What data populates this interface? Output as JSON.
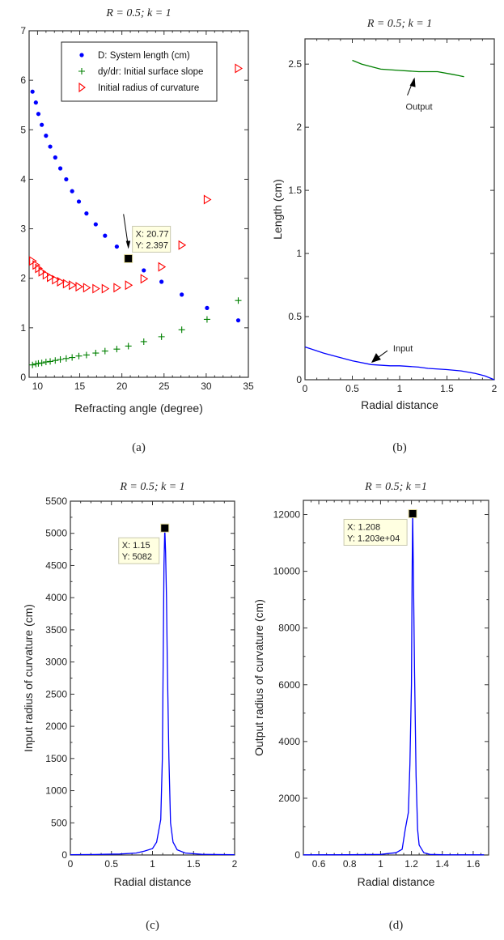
{
  "chart_data": [
    {
      "id": "a",
      "type": "scatter",
      "caption": "(a)",
      "title": "R = 0.5; k = 1",
      "xlabel": "Refracting angle (degree)",
      "ylabel": "",
      "xlim": [
        9,
        35
      ],
      "ylim": [
        0,
        7
      ],
      "xticks": [
        10,
        15,
        20,
        25,
        30,
        35
      ],
      "yticks": [
        0,
        1,
        2,
        3,
        4,
        5,
        6,
        7
      ],
      "legend_position": "top-center",
      "series": [
        {
          "name": "D: System length (cm)",
          "marker": "dot",
          "color": "#0000ff",
          "x": [
            9.4,
            9.8,
            10.1,
            10.5,
            11.0,
            11.5,
            12.1,
            12.7,
            13.4,
            14.1,
            14.9,
            15.8,
            16.9,
            18.0,
            19.4,
            20.77,
            22.6,
            24.7,
            27.1,
            30.1,
            33.8
          ],
          "y": [
            5.77,
            5.55,
            5.32,
            5.1,
            4.88,
            4.66,
            4.44,
            4.22,
            4.0,
            3.76,
            3.55,
            3.31,
            3.09,
            2.86,
            2.64,
            2.397,
            2.16,
            1.93,
            1.67,
            1.4,
            1.15
          ]
        },
        {
          "name": "dy/dr: Initial surface slope",
          "marker": "plus",
          "color": "#008000",
          "x": [
            9.4,
            9.8,
            10.1,
            10.5,
            11.0,
            11.5,
            12.1,
            12.7,
            13.4,
            14.1,
            14.9,
            15.8,
            16.9,
            18.0,
            19.4,
            20.77,
            22.6,
            24.7,
            27.1,
            30.1,
            33.8
          ],
          "y": [
            0.25,
            0.27,
            0.28,
            0.29,
            0.31,
            0.32,
            0.34,
            0.36,
            0.38,
            0.4,
            0.43,
            0.45,
            0.49,
            0.53,
            0.57,
            0.63,
            0.72,
            0.82,
            0.96,
            1.17,
            1.55
          ]
        },
        {
          "name": "Initial radius of curvature",
          "marker": "triangle-right",
          "color": "#ff0000",
          "x": [
            9.4,
            9.8,
            10.1,
            10.5,
            11.0,
            11.5,
            12.1,
            12.7,
            13.4,
            14.1,
            14.9,
            15.8,
            16.9,
            18.0,
            19.4,
            20.77,
            22.6,
            24.7,
            27.1,
            30.1,
            33.8
          ],
          "y": [
            2.35,
            2.27,
            2.2,
            2.13,
            2.07,
            2.02,
            1.97,
            1.93,
            1.89,
            1.86,
            1.83,
            1.81,
            1.79,
            1.79,
            1.81,
            1.86,
            1.99,
            2.23,
            2.67,
            3.59,
            6.24
          ]
        }
      ],
      "datatip": {
        "x_label": "X: 20.77",
        "y_label": "Y: 2.397",
        "x": 20.77,
        "y": 2.397
      }
    },
    {
      "id": "b",
      "type": "line",
      "caption": "(b)",
      "title": "R = 0.5; k = 1",
      "xlabel": "Radial distance",
      "ylabel": "Length (cm)",
      "xlim": [
        0,
        2
      ],
      "ylim": [
        0,
        2.7
      ],
      "xticks": [
        0,
        0.5,
        1,
        1.5,
        2
      ],
      "yticks": [
        0,
        0.5,
        1,
        1.5,
        2,
        2.5
      ],
      "series": [
        {
          "name": "Output",
          "color": "#008000",
          "x": [
            0.5,
            0.6,
            0.8,
            1.0,
            1.2,
            1.4,
            1.55,
            1.62,
            1.68
          ],
          "y": [
            2.53,
            2.5,
            2.46,
            2.45,
            2.44,
            2.44,
            2.42,
            2.41,
            2.4
          ]
        },
        {
          "name": "Input",
          "color": "#0000ff",
          "x": [
            0,
            0.2,
            0.4,
            0.5,
            0.7,
            0.9,
            1.0,
            1.2,
            1.3,
            1.5,
            1.65,
            1.8,
            1.9,
            2.0
          ],
          "y": [
            0.26,
            0.21,
            0.17,
            0.15,
            0.12,
            0.11,
            0.11,
            0.1,
            0.09,
            0.08,
            0.07,
            0.05,
            0.03,
            0.0
          ]
        }
      ],
      "annotations": [
        {
          "text": "Output",
          "points_to_x": 1.15,
          "points_to_y": 2.42
        },
        {
          "text": "Input",
          "points_to_x": 0.7,
          "points_to_y": 0.14
        }
      ]
    },
    {
      "id": "c",
      "type": "line",
      "caption": "(c)",
      "title": "R = 0.5; k = 1",
      "xlabel": "Radial distance",
      "ylabel": "Input radius of curvature (cm)",
      "xlim": [
        0,
        2
      ],
      "ylim": [
        0,
        5500
      ],
      "xticks": [
        0,
        0.5,
        1,
        1.5,
        2
      ],
      "yticks": [
        0,
        500,
        1000,
        1500,
        2000,
        2500,
        3000,
        3500,
        4000,
        4500,
        5000,
        5500
      ],
      "series": [
        {
          "name": "Input radius of curvature",
          "color": "#0000ff",
          "x": [
            0,
            0.3,
            0.6,
            0.8,
            0.9,
            1.0,
            1.05,
            1.1,
            1.12,
            1.13,
            1.14,
            1.15,
            1.16,
            1.17,
            1.18,
            1.2,
            1.22,
            1.25,
            1.3,
            1.4,
            1.6,
            2.0
          ],
          "y": [
            5,
            8,
            15,
            30,
            60,
            100,
            200,
            550,
            1500,
            3000,
            4500,
            5082,
            4700,
            4000,
            3000,
            1500,
            500,
            200,
            80,
            30,
            10,
            5
          ]
        }
      ],
      "datatip": {
        "x_label": "X: 1.15",
        "y_label": "Y: 5082",
        "x": 1.15,
        "y": 5082
      }
    },
    {
      "id": "d",
      "type": "line",
      "caption": "(d)",
      "title": "R = 0.5; k =1",
      "xlabel": "Radial distance",
      "ylabel": "Output radius of curvature (cm)",
      "xlim": [
        0.5,
        1.7
      ],
      "ylim": [
        0,
        12500
      ],
      "xticks": [
        0.6,
        0.8,
        1,
        1.2,
        1.4,
        1.6
      ],
      "yticks": [
        0,
        2000,
        4000,
        6000,
        8000,
        10000,
        12000
      ],
      "series": [
        {
          "name": "Output radius of curvature",
          "color": "#0000ff",
          "x": [
            0.5,
            0.8,
            1.0,
            1.05,
            1.1,
            1.14,
            1.16,
            1.18,
            1.19,
            1.2,
            1.205,
            1.208,
            1.212,
            1.22,
            1.23,
            1.24,
            1.25,
            1.28,
            1.32,
            1.4,
            1.67
          ],
          "y": [
            5,
            8,
            20,
            50,
            80,
            200,
            900,
            1500,
            3200,
            6000,
            10200,
            12030,
            10200,
            6500,
            2800,
            900,
            350,
            80,
            20,
            8,
            5
          ]
        }
      ],
      "datatip": {
        "x_label": "X: 1.208",
        "y_label": "Y: 1.203e+04",
        "x": 1.208,
        "y": 12030
      }
    }
  ]
}
